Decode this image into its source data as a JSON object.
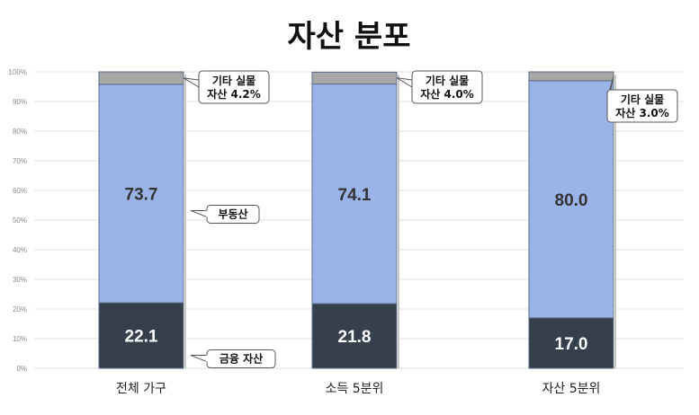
{
  "chart_data": {
    "type": "bar",
    "stacked": true,
    "title": "자산 분포",
    "categories": [
      "전체 가구",
      "소득 5분위",
      "자산 5분위"
    ],
    "series": [
      {
        "name": "금융 자산",
        "values": [
          22.1,
          21.8,
          17.0
        ],
        "color": "#36404d"
      },
      {
        "name": "부동산",
        "values": [
          73.7,
          74.1,
          80.0
        ],
        "color": "#9bb4e8"
      },
      {
        "name": "기타 실물 자산",
        "values": [
          4.2,
          4.0,
          3.0
        ],
        "color": "#a8a8a8"
      }
    ],
    "value_labels": [
      [
        "22.1",
        "21.8",
        "17.0"
      ],
      [
        "73.7",
        "74.1",
        "80.0"
      ]
    ],
    "value_label_colors": [
      "#ffffff",
      "#333333"
    ],
    "other_labels": [
      [
        "기타 실물",
        "자산 4.2%"
      ],
      [
        "기타 실물",
        "자산 4.0%"
      ],
      [
        "기타 실물",
        "자산 3.0%"
      ]
    ],
    "series_callouts": [
      "금융 자산",
      "부동산"
    ],
    "ylim": [
      0,
      100
    ],
    "yticks": [
      "0%",
      "10%",
      "20%",
      "30%",
      "40%",
      "50%",
      "60%",
      "70%",
      "80%",
      "90%",
      "100%"
    ],
    "grid": true
  }
}
